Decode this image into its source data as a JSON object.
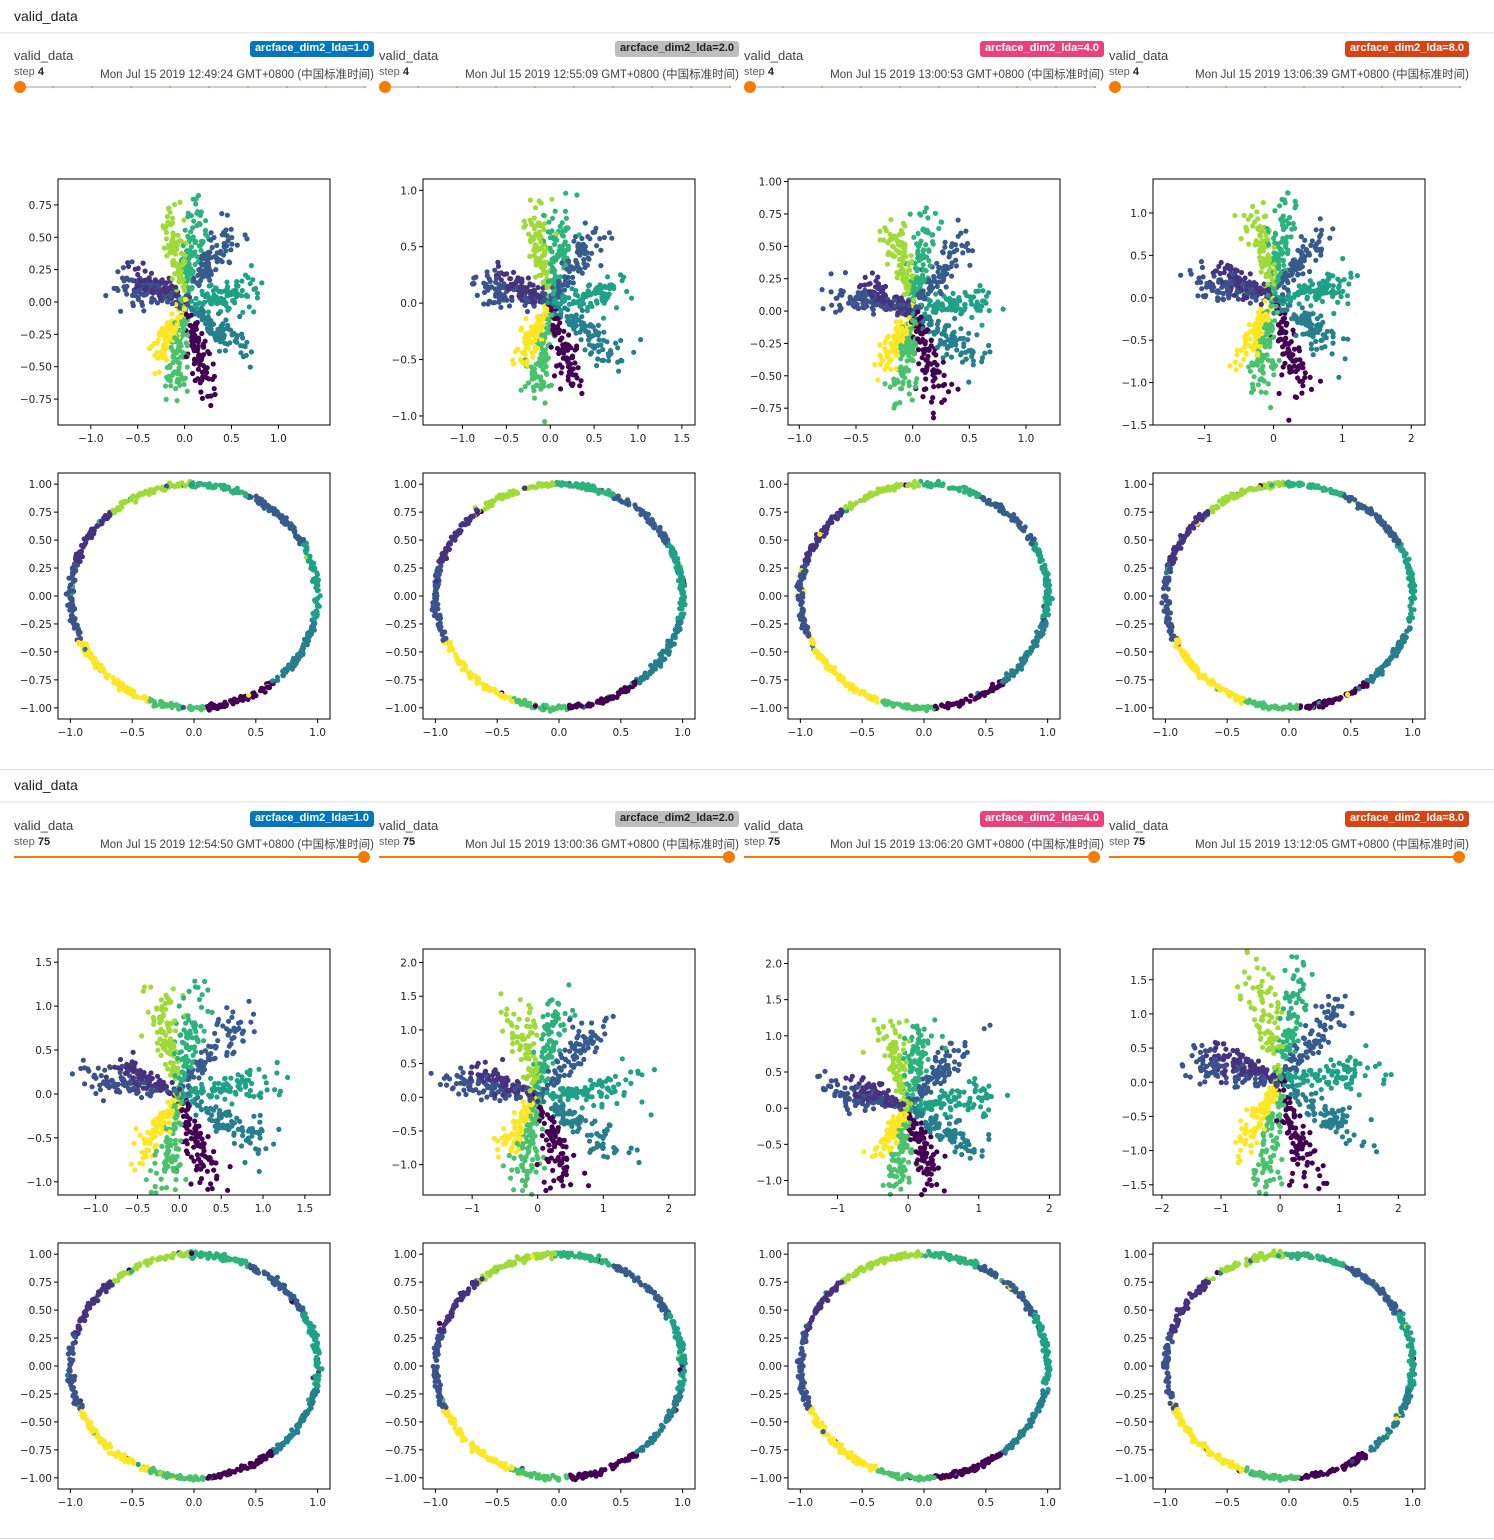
{
  "sections": [
    {
      "title": "valid_data",
      "cards": [
        {
          "tag": "valid_data",
          "run": "arcface_dim2_lda=1.0",
          "run_color": "#0277bd",
          "step_label": "step",
          "step": "4",
          "timestamp": "Mon Jul 15 2019 12:49:24 GMT+0800 (中国标准时间)",
          "slider_position": 0.0
        },
        {
          "tag": "valid_data",
          "run": "arcface_dim2_lda=2.0",
          "run_color": "#bdbdbd",
          "step_label": "step",
          "step": "4",
          "timestamp": "Mon Jul 15 2019 12:55:09 GMT+0800 (中国标准时间)",
          "slider_position": 0.0
        },
        {
          "tag": "valid_data",
          "run": "arcface_dim2_lda=4.0",
          "run_color": "#ec407a",
          "step_label": "step",
          "step": "4",
          "timestamp": "Mon Jul 15 2019 13:00:53 GMT+0800 (中国标准时间)",
          "slider_position": 0.0
        },
        {
          "tag": "valid_data",
          "run": "arcface_dim2_lda=8.0",
          "run_color": "#d84315",
          "step_label": "step",
          "step": "4",
          "timestamp": "Mon Jul 15 2019 13:06:39 GMT+0800 (中国标准时间)",
          "slider_position": 0.0
        }
      ]
    },
    {
      "title": "valid_data",
      "cards": [
        {
          "tag": "valid_data",
          "run": "arcface_dim2_lda=1.0",
          "run_color": "#0277bd",
          "step_label": "step",
          "step": "75",
          "timestamp": "Mon Jul 15 2019 12:54:50 GMT+0800 (中国标准时间)",
          "slider_position": 1.0
        },
        {
          "tag": "valid_data",
          "run": "arcface_dim2_lda=2.0",
          "run_color": "#bdbdbd",
          "step_label": "step",
          "step": "75",
          "timestamp": "Mon Jul 15 2019 13:00:36 GMT+0800 (中国标准时间)",
          "slider_position": 1.0
        },
        {
          "tag": "valid_data",
          "run": "arcface_dim2_lda=4.0",
          "run_color": "#ec407a",
          "step_label": "step",
          "step": "75",
          "timestamp": "Mon Jul 15 2019 13:06:20 GMT+0800 (中国标准时间)",
          "slider_position": 1.0
        },
        {
          "tag": "valid_data",
          "run": "arcface_dim2_lda=8.0",
          "run_color": "#d84315",
          "step_label": "step",
          "step": "75",
          "timestamp": "Mon Jul 15 2019 13:12:05 GMT+0800 (中国标准时间)",
          "slider_position": 1.0
        }
      ]
    }
  ],
  "class_colors": [
    "#440154",
    "#46327e",
    "#365c8d",
    "#277f8e",
    "#1fa187",
    "#4ac16d",
    "#a0da39",
    "#fde725",
    "#3b528b",
    "#2db27d"
  ],
  "chart_data": [
    {
      "type": "scatter",
      "panel": "features",
      "section": 0,
      "run": "arcface_dim2_lda=1.0",
      "xlim": [
        -1.35,
        1.55
      ],
      "ylim": [
        -0.95,
        0.95
      ],
      "xticks": [
        -1.0,
        -0.5,
        0.0,
        0.5,
        1.0
      ],
      "yticks": [
        0.75,
        0.5,
        0.25,
        0.0,
        -0.25,
        -0.5,
        -0.75
      ],
      "xtick_labels": [
        "−1.0",
        "−0.5",
        "0.0",
        "0.5",
        "1.0"
      ],
      "ytick_labels": [
        "0.75",
        "0.50",
        "0.25",
        "0.00",
        "−0.25",
        "−0.50",
        "−0.75"
      ],
      "classes": 10,
      "spread": 0.6
    },
    {
      "type": "scatter",
      "panel": "features",
      "section": 0,
      "run": "arcface_dim2_lda=2.0",
      "xlim": [
        -1.45,
        1.65
      ],
      "ylim": [
        -1.08,
        1.1
      ],
      "xticks": [
        -1.0,
        -0.5,
        0.0,
        0.5,
        1.0,
        1.5
      ],
      "yticks": [
        1.0,
        0.5,
        0.0,
        -0.5,
        -1.0
      ],
      "xtick_labels": [
        "−1.0",
        "−0.5",
        "0.0",
        "0.5",
        "1.0",
        "1.5"
      ],
      "ytick_labels": [
        "1.0",
        "0.5",
        "0.0",
        "−0.5",
        "−1.0"
      ],
      "classes": 10,
      "spread": 0.6
    },
    {
      "type": "scatter",
      "panel": "features",
      "section": 0,
      "run": "arcface_dim2_lda=4.0",
      "xlim": [
        -1.1,
        1.3
      ],
      "ylim": [
        -0.88,
        1.02
      ],
      "xticks": [
        -1.0,
        -0.5,
        0.0,
        0.5,
        1.0
      ],
      "yticks": [
        1.0,
        0.75,
        0.5,
        0.25,
        0.0,
        -0.25,
        -0.5,
        -0.75
      ],
      "xtick_labels": [
        "−1.0",
        "−0.5",
        "0.0",
        "0.5",
        "1.0"
      ],
      "ytick_labels": [
        "1.00",
        "0.75",
        "0.50",
        "0.25",
        "0.00",
        "−0.25",
        "−0.50",
        "−0.75"
      ],
      "classes": 10,
      "spread": 0.6
    },
    {
      "type": "scatter",
      "panel": "features",
      "section": 0,
      "run": "arcface_dim2_lda=8.0",
      "xlim": [
        -1.75,
        2.2
      ],
      "ylim": [
        -1.5,
        1.4
      ],
      "xticks": [
        -1,
        0,
        1,
        2
      ],
      "yticks": [
        1.0,
        0.5,
        0.0,
        -0.5,
        -1.0,
        -1.5
      ],
      "xtick_labels": [
        "−1",
        "0",
        "1",
        "2"
      ],
      "ytick_labels": [
        "1.0",
        "0.5",
        "0.0",
        "−0.5",
        "−1.0",
        "−1.5"
      ],
      "classes": 10,
      "spread": 0.6
    },
    {
      "type": "scatter",
      "panel": "normalized",
      "section": 0,
      "run": "arcface_dim2_lda=1.0",
      "xlim": [
        -1.1,
        1.1
      ],
      "ylim": [
        -1.1,
        1.1
      ],
      "xticks": [
        -1.0,
        -0.5,
        0.0,
        0.5,
        1.0
      ],
      "yticks": [
        1.0,
        0.75,
        0.5,
        0.25,
        0.0,
        -0.25,
        -0.5,
        -0.75,
        -1.0
      ],
      "xtick_labels": [
        "−1.0",
        "−0.5",
        "0.0",
        "0.5",
        "1.0"
      ],
      "ytick_labels": [
        "1.00",
        "0.75",
        "0.50",
        "0.25",
        "0.00",
        "−0.25",
        "−0.50",
        "−0.75",
        "−1.00"
      ],
      "classes": 10,
      "shape": "unit circle"
    },
    {
      "type": "scatter",
      "panel": "normalized",
      "section": 0,
      "run": "arcface_dim2_lda=2.0",
      "xlim": [
        -1.1,
        1.1
      ],
      "ylim": [
        -1.1,
        1.1
      ],
      "xticks": [
        -1.0,
        -0.5,
        0.0,
        0.5,
        1.0
      ],
      "yticks": [
        1.0,
        0.75,
        0.5,
        0.25,
        0.0,
        -0.25,
        -0.5,
        -0.75,
        -1.0
      ],
      "xtick_labels": [
        "−1.0",
        "−0.5",
        "0.0",
        "0.5",
        "1.0"
      ],
      "ytick_labels": [
        "1.00",
        "0.75",
        "0.50",
        "0.25",
        "0.00",
        "−0.25",
        "−0.50",
        "−0.75",
        "−1.00"
      ],
      "classes": 10,
      "shape": "unit circle"
    },
    {
      "type": "scatter",
      "panel": "normalized",
      "section": 0,
      "run": "arcface_dim2_lda=4.0",
      "xlim": [
        -1.1,
        1.1
      ],
      "ylim": [
        -1.1,
        1.1
      ],
      "xticks": [
        -1.0,
        -0.5,
        0.0,
        0.5,
        1.0
      ],
      "yticks": [
        1.0,
        0.75,
        0.5,
        0.25,
        0.0,
        -0.25,
        -0.5,
        -0.75,
        -1.0
      ],
      "xtick_labels": [
        "−1.0",
        "−0.5",
        "0.0",
        "0.5",
        "1.0"
      ],
      "ytick_labels": [
        "1.00",
        "0.75",
        "0.50",
        "0.25",
        "0.00",
        "−0.25",
        "−0.50",
        "−0.75",
        "−1.00"
      ],
      "classes": 10,
      "shape": "unit circle"
    },
    {
      "type": "scatter",
      "panel": "normalized",
      "section": 0,
      "run": "arcface_dim2_lda=8.0",
      "xlim": [
        -1.1,
        1.1
      ],
      "ylim": [
        -1.1,
        1.1
      ],
      "xticks": [
        -1.0,
        -0.5,
        0.0,
        0.5,
        1.0
      ],
      "yticks": [
        1.0,
        0.75,
        0.5,
        0.25,
        0.0,
        -0.25,
        -0.5,
        -0.75,
        -1.0
      ],
      "xtick_labels": [
        "−1.0",
        "−0.5",
        "0.0",
        "0.5",
        "1.0"
      ],
      "ytick_labels": [
        "1.00",
        "0.75",
        "0.50",
        "0.25",
        "0.00",
        "−0.25",
        "−0.50",
        "−0.75",
        "−1.00"
      ],
      "classes": 10,
      "shape": "unit circle"
    },
    {
      "type": "scatter",
      "panel": "features",
      "section": 1,
      "run": "arcface_dim2_lda=1.0",
      "xlim": [
        -1.45,
        1.8
      ],
      "ylim": [
        -1.15,
        1.65
      ],
      "xticks": [
        -1.0,
        -0.5,
        0.0,
        0.5,
        1.0,
        1.5
      ],
      "yticks": [
        1.5,
        1.0,
        0.5,
        0.0,
        -0.5,
        -1.0
      ],
      "xtick_labels": [
        "−1.0",
        "−0.5",
        "0.0",
        "0.5",
        "1.0",
        "1.5"
      ],
      "ytick_labels": [
        "1.5",
        "1.0",
        "0.5",
        "0.0",
        "−0.5",
        "−1.0"
      ],
      "classes": 10,
      "spread": 0.85
    },
    {
      "type": "scatter",
      "panel": "features",
      "section": 1,
      "run": "arcface_dim2_lda=2.0",
      "xlim": [
        -1.75,
        2.4
      ],
      "ylim": [
        -1.45,
        2.2
      ],
      "xticks": [
        -1,
        0,
        1,
        2
      ],
      "yticks": [
        2.0,
        1.5,
        1.0,
        0.5,
        0.0,
        -0.5,
        -1.0
      ],
      "xtick_labels": [
        "−1",
        "0",
        "1",
        "2"
      ],
      "ytick_labels": [
        "2.0",
        "1.5",
        "1.0",
        "0.5",
        "0.0",
        "−0.5",
        "−1.0"
      ],
      "classes": 10,
      "spread": 0.85
    },
    {
      "type": "scatter",
      "panel": "features",
      "section": 1,
      "run": "arcface_dim2_lda=4.0",
      "xlim": [
        -1.7,
        2.15
      ],
      "ylim": [
        -1.2,
        2.2
      ],
      "xticks": [
        -1,
        0,
        1,
        2
      ],
      "yticks": [
        2.0,
        1.5,
        1.0,
        0.5,
        0.0,
        -0.5,
        -1.0
      ],
      "xtick_labels": [
        "−1",
        "0",
        "1",
        "2"
      ],
      "ytick_labels": [
        "2.0",
        "1.5",
        "1.0",
        "0.5",
        "0.0",
        "−0.5",
        "−1.0"
      ],
      "classes": 10,
      "spread": 0.85
    },
    {
      "type": "scatter",
      "panel": "features",
      "section": 1,
      "run": "arcface_dim2_lda=8.0",
      "xlim": [
        -2.15,
        2.45
      ],
      "ylim": [
        -1.65,
        1.95
      ],
      "xticks": [
        -2,
        -1,
        0,
        1,
        2
      ],
      "yticks": [
        1.5,
        1.0,
        0.5,
        0.0,
        -0.5,
        -1.0,
        -1.5
      ],
      "xtick_labels": [
        "−2",
        "−1",
        "0",
        "1",
        "2"
      ],
      "ytick_labels": [
        "1.5",
        "1.0",
        "0.5",
        "0.0",
        "−0.5",
        "−1.0",
        "−1.5"
      ],
      "classes": 10,
      "spread": 0.85
    },
    {
      "type": "scatter",
      "panel": "normalized",
      "section": 1,
      "run": "arcface_dim2_lda=1.0",
      "xlim": [
        -1.1,
        1.1
      ],
      "ylim": [
        -1.1,
        1.1
      ],
      "xticks": [
        -1.0,
        -0.5,
        0.0,
        0.5,
        1.0
      ],
      "yticks": [
        1.0,
        0.75,
        0.5,
        0.25,
        0.0,
        -0.25,
        -0.5,
        -0.75,
        -1.0
      ],
      "xtick_labels": [
        "−1.0",
        "−0.5",
        "0.0",
        "0.5",
        "1.0"
      ],
      "ytick_labels": [
        "1.00",
        "0.75",
        "0.50",
        "0.25",
        "0.00",
        "−0.25",
        "−0.50",
        "−0.75",
        "−1.00"
      ],
      "classes": 10,
      "shape": "unit circle"
    },
    {
      "type": "scatter",
      "panel": "normalized",
      "section": 1,
      "run": "arcface_dim2_lda=2.0",
      "xlim": [
        -1.1,
        1.1
      ],
      "ylim": [
        -1.1,
        1.1
      ],
      "xticks": [
        -1.0,
        -0.5,
        0.0,
        0.5,
        1.0
      ],
      "yticks": [
        1.0,
        0.75,
        0.5,
        0.25,
        0.0,
        -0.25,
        -0.5,
        -0.75,
        -1.0
      ],
      "xtick_labels": [
        "−1.0",
        "−0.5",
        "0.0",
        "0.5",
        "1.0"
      ],
      "ytick_labels": [
        "1.00",
        "0.75",
        "0.50",
        "0.25",
        "0.00",
        "−0.25",
        "−0.50",
        "−0.75",
        "−1.00"
      ],
      "classes": 10,
      "shape": "unit circle"
    },
    {
      "type": "scatter",
      "panel": "normalized",
      "section": 1,
      "run": "arcface_dim2_lda=4.0",
      "xlim": [
        -1.1,
        1.1
      ],
      "ylim": [
        -1.1,
        1.1
      ],
      "xticks": [
        -1.0,
        -0.5,
        0.0,
        0.5,
        1.0
      ],
      "yticks": [
        1.0,
        0.75,
        0.5,
        0.25,
        0.0,
        -0.25,
        -0.5,
        -0.75,
        -1.0
      ],
      "xtick_labels": [
        "−1.0",
        "−0.5",
        "0.0",
        "0.5",
        "1.0"
      ],
      "ytick_labels": [
        "1.00",
        "0.75",
        "0.50",
        "0.25",
        "0.00",
        "−0.25",
        "−0.50",
        "−0.75",
        "−1.00"
      ],
      "classes": 10,
      "shape": "unit circle"
    },
    {
      "type": "scatter",
      "panel": "normalized",
      "section": 1,
      "run": "arcface_dim2_lda=8.0",
      "xlim": [
        -1.1,
        1.1
      ],
      "ylim": [
        -1.1,
        1.1
      ],
      "xticks": [
        -1.0,
        -0.5,
        0.0,
        0.5,
        1.0
      ],
      "yticks": [
        1.0,
        0.75,
        0.5,
        0.25,
        0.0,
        -0.25,
        -0.5,
        -0.75,
        -1.0
      ],
      "xtick_labels": [
        "−1.0",
        "−0.5",
        "0.0",
        "0.5",
        "1.0"
      ],
      "ytick_labels": [
        "1.00",
        "0.75",
        "0.50",
        "0.25",
        "0.00",
        "−0.25",
        "−0.50",
        "−0.75",
        "−1.00"
      ],
      "classes": 10,
      "shape": "unit circle"
    }
  ]
}
